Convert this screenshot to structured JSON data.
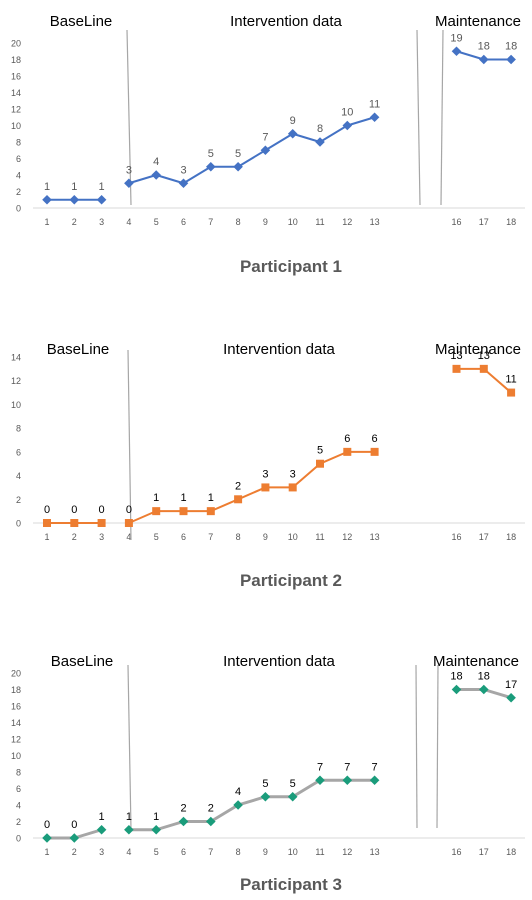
{
  "chart_data": [
    {
      "type": "line",
      "title": "Participant 1",
      "phases": [
        "BaseLine",
        "Intervention data",
        "Maintenance"
      ],
      "ylim": [
        0,
        20
      ],
      "yticks": [
        0,
        2,
        4,
        6,
        8,
        10,
        12,
        14,
        16,
        18,
        20
      ],
      "color": "#4472c4",
      "line_color": "#4472c4",
      "marker": "diamond",
      "label_color": "#595959",
      "segments": [
        {
          "x": [
            1,
            2,
            3
          ],
          "y": [
            1,
            1,
            1
          ]
        },
        {
          "x": [
            4,
            5,
            6,
            7,
            8,
            9,
            10,
            11,
            12,
            13
          ],
          "y": [
            3,
            4,
            3,
            5,
            5,
            7,
            9,
            8,
            10,
            11
          ]
        },
        {
          "x": [
            16,
            17,
            18
          ],
          "y": [
            19,
            18,
            18
          ]
        }
      ]
    },
    {
      "type": "line",
      "title": "Participant 2",
      "phases": [
        "BaseLine",
        "Intervention data",
        "Maintenance"
      ],
      "ylim": [
        0,
        14
      ],
      "yticks": [
        0,
        2,
        4,
        6,
        8,
        10,
        12,
        14
      ],
      "color": "#ed7d31",
      "line_color": "#ed7d31",
      "marker": "square",
      "label_color": "#000000",
      "segments": [
        {
          "x": [
            1,
            2,
            3
          ],
          "y": [
            0,
            0,
            0
          ]
        },
        {
          "x": [
            4,
            5,
            6,
            7,
            8,
            9,
            10,
            11,
            12,
            13
          ],
          "y": [
            0,
            1,
            1,
            1,
            2,
            3,
            3,
            5,
            6,
            6
          ]
        },
        {
          "x": [
            16,
            17,
            18
          ],
          "y": [
            13,
            13,
            11
          ]
        }
      ]
    },
    {
      "type": "line",
      "title": "Participant 3",
      "phases": [
        "BaseLine",
        "Intervention data",
        "Maintenance"
      ],
      "ylim": [
        0,
        20
      ],
      "yticks": [
        0,
        2,
        4,
        6,
        8,
        10,
        12,
        14,
        16,
        18,
        20
      ],
      "color": "#1a9c7b",
      "line_color": "#a6a6a6",
      "marker": "diamond",
      "label_color": "#000000",
      "segments": [
        {
          "x": [
            1,
            2,
            3
          ],
          "y": [
            0,
            0,
            1
          ]
        },
        {
          "x": [
            4,
            5,
            6,
            7,
            8,
            9,
            10,
            11,
            12,
            13
          ],
          "y": [
            1,
            1,
            2,
            2,
            4,
            5,
            5,
            7,
            7,
            7
          ]
        },
        {
          "x": [
            16,
            17,
            18
          ],
          "y": [
            18,
            18,
            17
          ]
        }
      ]
    }
  ]
}
